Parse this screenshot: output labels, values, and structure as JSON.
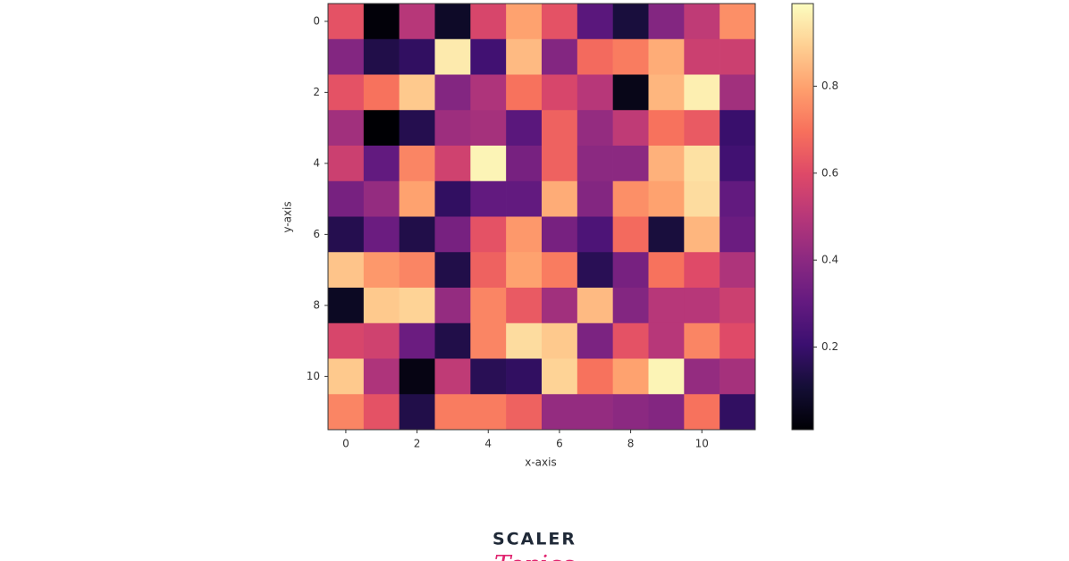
{
  "chart_data": {
    "type": "heatmap",
    "colormap": "magma",
    "xlabel": "x-axis",
    "ylabel": "y-axis",
    "xlim": [
      -0.5,
      11.5
    ],
    "ylim": [
      11.5,
      -0.5
    ],
    "xticks": [
      0,
      2,
      4,
      6,
      8,
      10
    ],
    "yticks": [
      0,
      2,
      4,
      6,
      8,
      10
    ],
    "colorbar_lim": [
      0.01,
      0.99
    ],
    "colorbar_ticks": [
      0.2,
      0.4,
      0.6,
      0.8
    ],
    "z": [
      [
        0.62,
        0.02,
        0.5,
        0.08,
        0.58,
        0.8,
        0.62,
        0.28,
        0.12,
        0.38,
        0.52,
        0.76
      ],
      [
        0.38,
        0.14,
        0.18,
        0.95,
        0.22,
        0.85,
        0.38,
        0.68,
        0.72,
        0.82,
        0.55,
        0.55
      ],
      [
        0.62,
        0.7,
        0.88,
        0.38,
        0.48,
        0.7,
        0.58,
        0.5,
        0.05,
        0.84,
        0.96,
        0.45
      ],
      [
        0.45,
        0.01,
        0.15,
        0.44,
        0.46,
        0.28,
        0.66,
        0.42,
        0.52,
        0.7,
        0.64,
        0.2
      ],
      [
        0.55,
        0.3,
        0.74,
        0.56,
        0.97,
        0.35,
        0.66,
        0.4,
        0.4,
        0.83,
        0.93,
        0.22
      ],
      [
        0.35,
        0.42,
        0.8,
        0.18,
        0.3,
        0.3,
        0.82,
        0.38,
        0.76,
        0.8,
        0.92,
        0.3
      ],
      [
        0.15,
        0.32,
        0.14,
        0.35,
        0.62,
        0.78,
        0.35,
        0.25,
        0.68,
        0.12,
        0.84,
        0.32
      ],
      [
        0.87,
        0.78,
        0.74,
        0.14,
        0.66,
        0.8,
        0.72,
        0.16,
        0.35,
        0.7,
        0.6,
        0.48
      ],
      [
        0.07,
        0.88,
        0.9,
        0.42,
        0.74,
        0.64,
        0.45,
        0.85,
        0.38,
        0.5,
        0.5,
        0.55
      ],
      [
        0.58,
        0.56,
        0.32,
        0.14,
        0.74,
        0.92,
        0.88,
        0.36,
        0.62,
        0.5,
        0.74,
        0.6
      ],
      [
        0.88,
        0.48,
        0.04,
        0.52,
        0.16,
        0.18,
        0.9,
        0.7,
        0.8,
        0.97,
        0.42,
        0.46
      ],
      [
        0.74,
        0.62,
        0.14,
        0.72,
        0.72,
        0.66,
        0.42,
        0.42,
        0.4,
        0.38,
        0.7,
        0.18
      ]
    ]
  },
  "logo": {
    "name": "SCALER",
    "tagline": "Topics"
  }
}
